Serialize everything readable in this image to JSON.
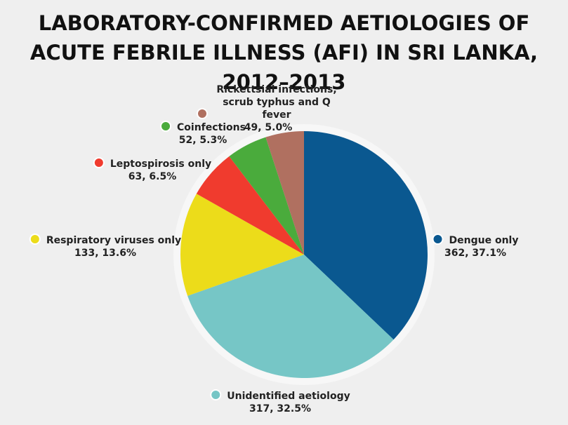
{
  "chart_data": {
    "type": "pie",
    "title": "LABORATORY-CONFIRMED AETIOLOGIES OF ACUTE FEBRILE ILLNESS (AFI) IN SRI LANKA, 2012–2013",
    "categories": [
      "Dengue only",
      "Unidentified aetiology",
      "Respiratory viruses only",
      "Leptospirosis only",
      "Coinfections",
      "Rickettsial infections, scrub typhus and Q fever"
    ],
    "values": [
      362,
      317,
      133,
      63,
      52,
      49
    ],
    "value_labels": [
      "362, 37.1%",
      "317, 32.5%",
      "133, 13.6%",
      "63, 6.5%",
      "52, 5.3%",
      "49, 5.0%"
    ],
    "colors": [
      "#0a5890",
      "#76c6c6",
      "#ecdc1a",
      "#f03b2e",
      "#4aab3c",
      "#b07060"
    ]
  }
}
